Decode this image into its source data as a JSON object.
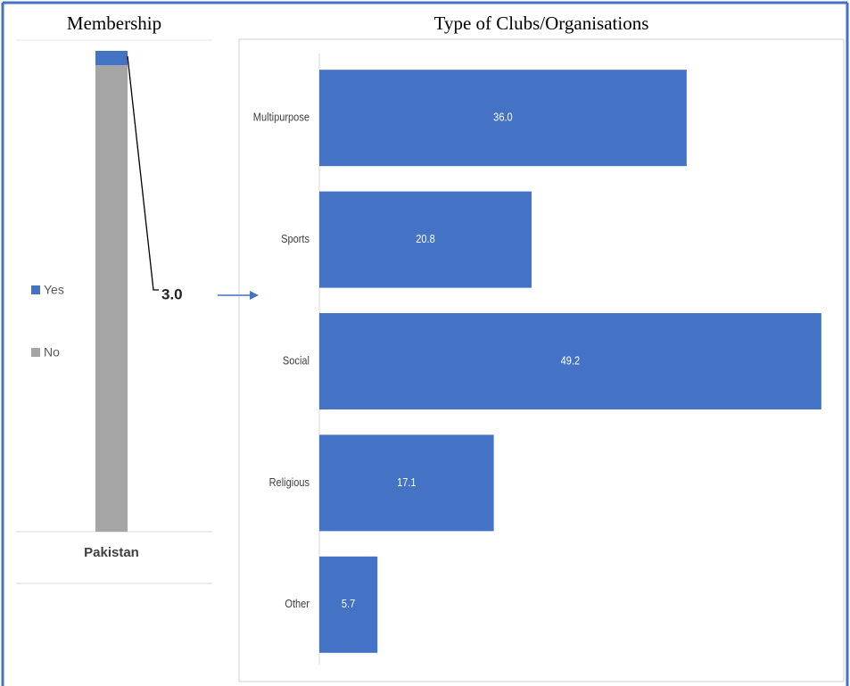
{
  "chart_data": [
    {
      "type": "bar",
      "stacked": true,
      "title": "Membership",
      "categories": [
        "Pakistan"
      ],
      "series": [
        {
          "name": "Yes",
          "color": "#4472c4",
          "values": [
            3.0
          ],
          "value_labels": [
            "3.0"
          ]
        },
        {
          "name": "No",
          "color": "#a5a5a5",
          "values": [
            97.0
          ]
        }
      ],
      "ylim": [
        0,
        100
      ]
    },
    {
      "type": "bar",
      "horizontal": true,
      "title": "Type of Clubs/Organisations",
      "categories": [
        "Multipurpose",
        "Sports",
        "Social",
        "Religious",
        "Other"
      ],
      "values": [
        36.0,
        20.8,
        49.2,
        17.1,
        5.7
      ],
      "value_labels": [
        "36.0",
        "20.8",
        "49.2",
        "17.1",
        "5.7"
      ],
      "color": "#4472c4",
      "xlim": [
        0,
        50
      ]
    }
  ]
}
